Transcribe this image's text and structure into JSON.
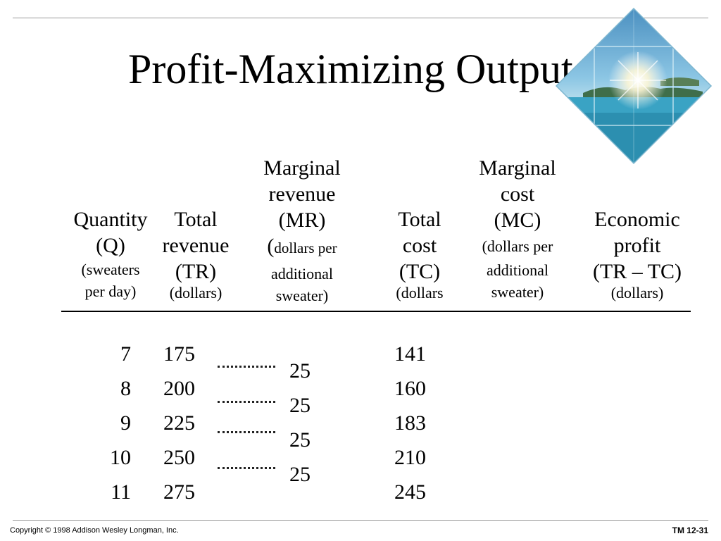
{
  "slide": {
    "title": "Profit-Maximizing Output",
    "footer_left": "Copyright © 1998 Addison Wesley Longman, Inc.",
    "footer_right": "TM 12-31",
    "image": "tropical-island-sunburst"
  },
  "headers": {
    "quantity": [
      "Quantity",
      "(Q)",
      "(sweaters",
      "per day)"
    ],
    "total_revenue": [
      "Total",
      "revenue",
      "(TR)",
      "(dollars)"
    ],
    "marginal_revenue": {
      "l1": "Marginal",
      "l2": "revenue",
      "l3": "(MR)",
      "l4a": "(",
      "l4b": "dollars per",
      "l5": "additional",
      "l6": "sweater)"
    },
    "total_cost": [
      "Total",
      "cost",
      "(TC)",
      "(dollars"
    ],
    "marginal_cost": [
      "Marginal",
      "cost",
      "(MC)",
      "(dollars per",
      "additional",
      "sweater)"
    ],
    "economic_profit": [
      "Economic",
      "profit",
      "(TR – TC)",
      "(dollars)"
    ]
  },
  "table": {
    "quantity": [
      "7",
      "8",
      "9",
      "10",
      "11"
    ],
    "total_revenue": [
      "175",
      "200",
      "225",
      "250",
      "275"
    ],
    "marginal_revenue": [
      "25",
      "25",
      "25",
      "25"
    ],
    "total_cost": [
      "141",
      "160",
      "183",
      "210",
      "245"
    ]
  }
}
